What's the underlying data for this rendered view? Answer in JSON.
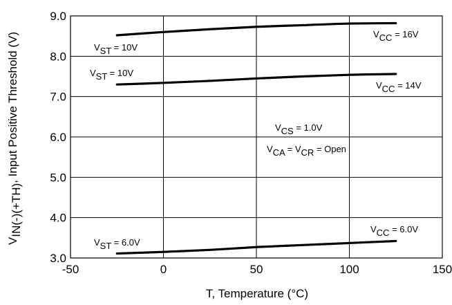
{
  "chart_data": {
    "type": "line",
    "xlabel": "T, Temperature (°C)",
    "ylabel": {
      "main": "V",
      "sub": "IN(-)(+TH)",
      "rest": ", Input Positive Threshold (V)"
    },
    "xlim": [
      -50,
      150
    ],
    "ylim": [
      3.0,
      9.0
    ],
    "x_ticks": [
      "-50",
      "0",
      "50",
      "100",
      "150"
    ],
    "y_ticks": [
      "3.0",
      "4.0",
      "5.0",
      "6.0",
      "7.0",
      "8.0",
      "9.0"
    ],
    "grid": true,
    "series": [
      {
        "x": [
          -25,
          0,
          25,
          50,
          75,
          100,
          125
        ],
        "y": [
          8.52,
          8.6,
          8.67,
          8.73,
          8.77,
          8.81,
          8.82
        ]
      },
      {
        "x": [
          -25,
          0,
          25,
          50,
          75,
          100,
          125
        ],
        "y": [
          7.3,
          7.34,
          7.39,
          7.45,
          7.5,
          7.54,
          7.56
        ]
      },
      {
        "x": [
          -25,
          0,
          25,
          50,
          75,
          100,
          125
        ],
        "y": [
          3.11,
          3.15,
          3.2,
          3.27,
          3.32,
          3.37,
          3.42
        ]
      }
    ],
    "annotations": [
      {
        "id": "vst-16",
        "main": "V",
        "sub": "ST",
        "rest": " = 10V"
      },
      {
        "id": "vcc-16",
        "main": "V",
        "sub": "CC",
        "rest": " = 16V"
      },
      {
        "id": "vst-14",
        "main": "V",
        "sub": "ST",
        "rest": " = 10V"
      },
      {
        "id": "vcc-14",
        "main": "V",
        "sub": "CC",
        "rest": " = 14V"
      },
      {
        "id": "vcs",
        "main": "V",
        "sub": "CS",
        "rest": " = 1.0V"
      },
      {
        "id": "vca",
        "parts": [
          "V",
          "CA",
          " = V",
          "CR",
          " = Open"
        ]
      },
      {
        "id": "vst-6",
        "main": "V",
        "sub": "ST",
        "rest": " = 6.0V"
      },
      {
        "id": "vcc-6",
        "main": "V",
        "sub": "CC",
        "rest": " = 6.0V"
      }
    ]
  }
}
